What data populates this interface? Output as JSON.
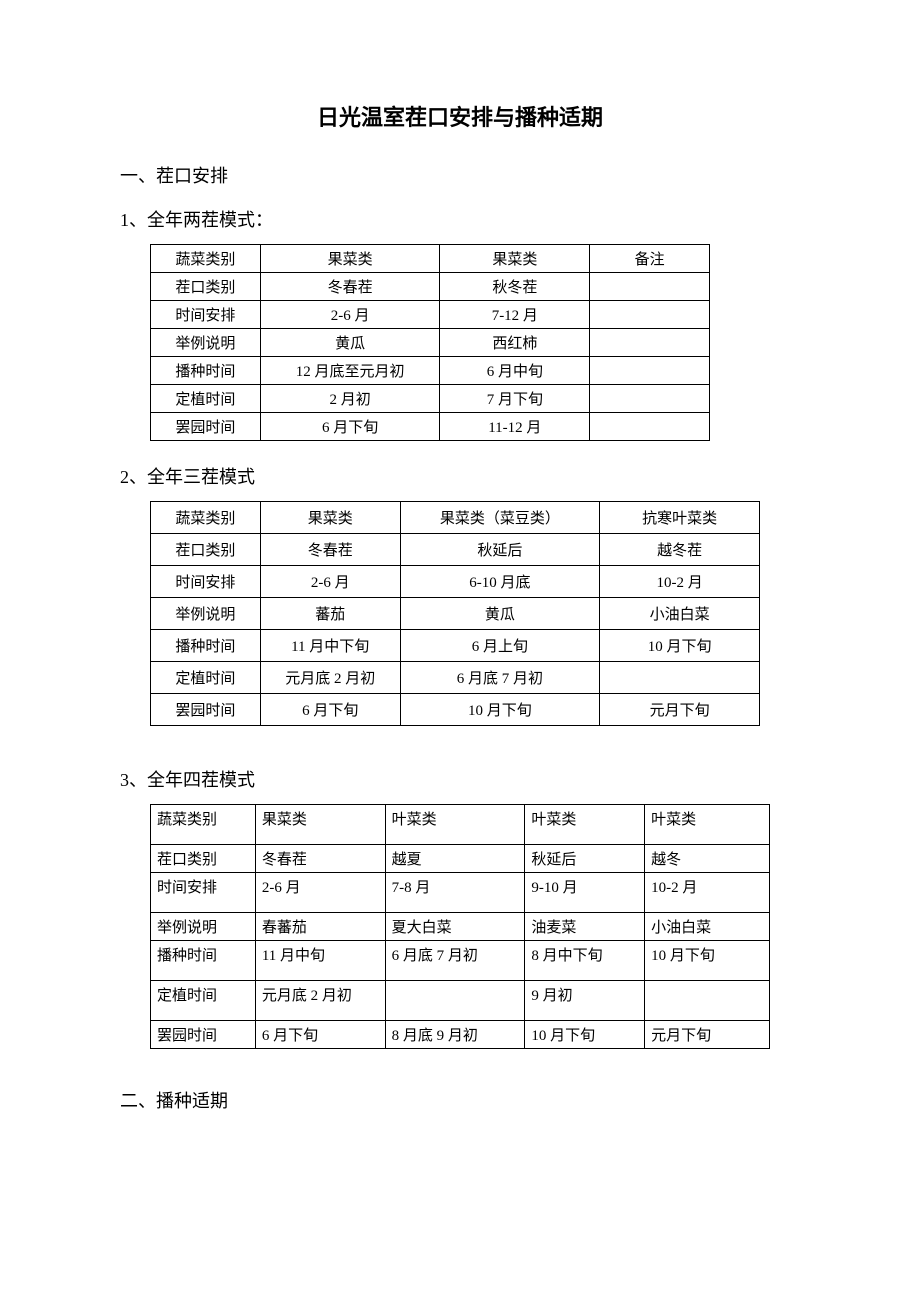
{
  "title": "日光温室茬口安排与播种适期",
  "section1": {
    "heading": "一、茬口安排",
    "sub1": {
      "heading": "1、全年两茬模式：",
      "rows": [
        [
          "蔬菜类别",
          "果菜类",
          "果菜类",
          "备注"
        ],
        [
          "茬口类别",
          "冬春茬",
          "秋冬茬",
          ""
        ],
        [
          "时间安排",
          "2-6 月",
          "7-12 月",
          ""
        ],
        [
          "举例说明",
          "黄瓜",
          "西红柿",
          ""
        ],
        [
          "播种时间",
          "12 月底至元月初",
          "6 月中旬",
          ""
        ],
        [
          "定植时间",
          "2 月初",
          "7 月下旬",
          ""
        ],
        [
          "罢园时间",
          "6 月下旬",
          "11-12 月",
          ""
        ]
      ]
    },
    "sub2": {
      "heading": "2、全年三茬模式",
      "rows": [
        [
          "蔬菜类别",
          "果菜类",
          "果菜类（菜豆类）",
          "抗寒叶菜类"
        ],
        [
          "茬口类别",
          "冬春茬",
          "秋延后",
          "越冬茬"
        ],
        [
          "时间安排",
          "2-6 月",
          "6-10 月底",
          "10-2 月"
        ],
        [
          "举例说明",
          "蕃茄",
          "黄瓜",
          "小油白菜"
        ],
        [
          "播种时间",
          "11 月中下旬",
          "6 月上旬",
          "10 月下旬"
        ],
        [
          "定植时间",
          "元月底 2 月初",
          "6 月底 7 月初",
          ""
        ],
        [
          "罢园时间",
          "6 月下旬",
          "10 月下旬",
          "元月下旬"
        ]
      ]
    },
    "sub3": {
      "heading": "3、全年四茬模式",
      "rows": [
        [
          "蔬菜类别",
          "果菜类",
          "叶菜类",
          "叶菜类",
          "叶菜类"
        ],
        [
          "茬口类别",
          "冬春茬",
          "越夏",
          "秋延后",
          "越冬"
        ],
        [
          "时间安排",
          "2-6 月",
          "7-8 月",
          "9-10 月",
          "10-2 月"
        ],
        [
          "举例说明",
          "春蕃茄",
          "夏大白菜",
          "油麦菜",
          "小油白菜"
        ],
        [
          "播种时间",
          "11 月中旬",
          "6 月底 7 月初",
          "8 月中下旬",
          "10 月下旬"
        ],
        [
          "定植时间",
          "元月底 2 月初",
          "",
          "9 月初",
          ""
        ],
        [
          "罢园时间",
          "6 月下旬",
          "8 月底 9 月初",
          "10 月下旬",
          "元月下旬"
        ]
      ]
    }
  },
  "section2": {
    "heading": "二、播种适期"
  },
  "colors": {
    "text": "#000000",
    "background": "#ffffff",
    "border": "#000000"
  },
  "typography": {
    "title_fontsize": 22,
    "heading_fontsize": 18,
    "body_fontsize": 15,
    "font_family": "SimSun"
  }
}
